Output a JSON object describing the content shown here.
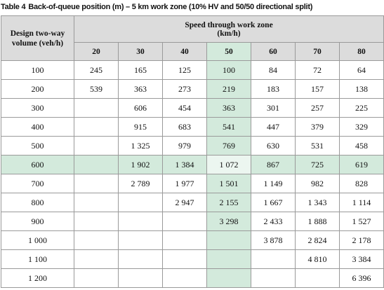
{
  "table_label": "Table 4",
  "title": "Back-of-queue position (m) – 5 km work zone (10% HV and 50/50 directional split)",
  "table": {
    "volume_heading": "Design two-way volume (veh/h)",
    "speed_heading": "Speed through work zone",
    "speed_unit": "(km/h)",
    "speeds": [
      "20",
      "30",
      "40",
      "50",
      "60",
      "70",
      "80"
    ],
    "rows": [
      [
        "100",
        "245",
        "165",
        "125",
        "100",
        "84",
        "72",
        "64"
      ],
      [
        "200",
        "539",
        "363",
        "273",
        "219",
        "183",
        "157",
        "138"
      ],
      [
        "300",
        null,
        "606",
        "454",
        "363",
        "301",
        "257",
        "225"
      ],
      [
        "400",
        null,
        "915",
        "683",
        "541",
        "447",
        "379",
        "329"
      ],
      [
        "500",
        null,
        "1 325",
        "979",
        "769",
        "630",
        "531",
        "458"
      ],
      [
        "600",
        null,
        "1 902",
        "1 384",
        "1 072",
        "867",
        "725",
        "619"
      ],
      [
        "700",
        null,
        "2 789",
        "1 977",
        "1 501",
        "1 149",
        "982",
        "828"
      ],
      [
        "800",
        null,
        null,
        "2 947",
        "2 155",
        "1 667",
        "1 343",
        "1 114"
      ],
      [
        "900",
        null,
        null,
        null,
        "3 298",
        "2 433",
        "1 888",
        "1 527"
      ],
      [
        "1 000",
        null,
        null,
        null,
        null,
        "3 878",
        "2 824",
        "2 178"
      ],
      [
        "1 100",
        null,
        null,
        null,
        null,
        null,
        "4 810",
        "3 384"
      ],
      [
        "1 200",
        null,
        null,
        null,
        null,
        null,
        null,
        "6 396"
      ]
    ]
  }
}
